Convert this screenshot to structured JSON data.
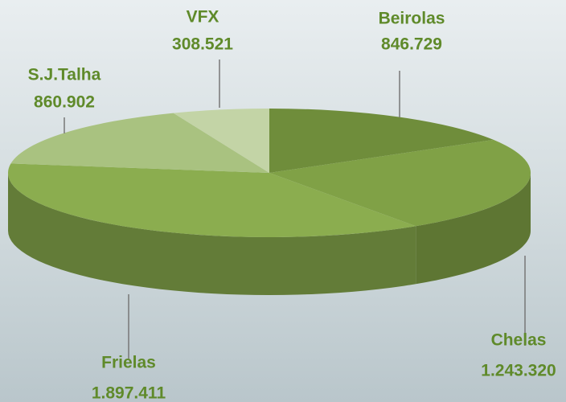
{
  "chart_data": {
    "type": "pie",
    "categories": [
      "Beirolas",
      "Chelas",
      "Frielas",
      "S.J.Talha",
      "VFX"
    ],
    "values": [
      846729,
      1243320,
      1897411,
      860902,
      308521
    ],
    "value_labels": [
      "846.729",
      "1.243.320",
      "1.897.411",
      "860.902",
      "308.521"
    ],
    "colors": [
      "#6f8d3b",
      "#80a146",
      "#8bad4f",
      "#a9c280",
      "#c3d4a6"
    ]
  }
}
